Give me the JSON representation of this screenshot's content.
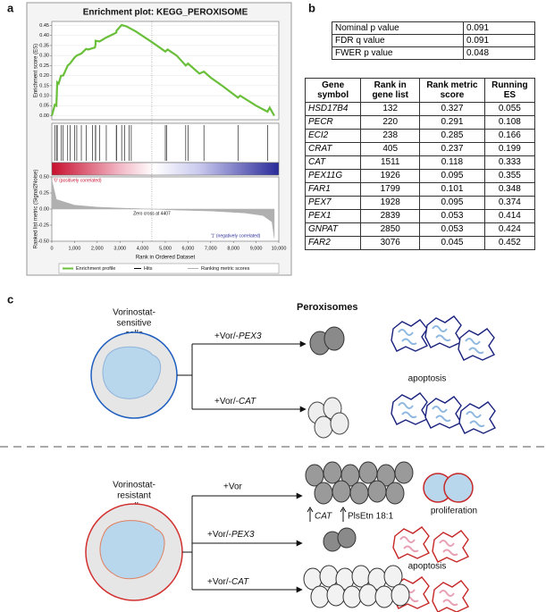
{
  "panel_labels": [
    "a",
    "b",
    "c"
  ],
  "chart_data": [
    {
      "type": "line",
      "title": "Enrichment plot: KEGG_PEROXISOME",
      "ylabel": "Enrichment score (ES)",
      "x": [
        0,
        50,
        132,
        200,
        220,
        238,
        300,
        405,
        500,
        700,
        800,
        1000,
        1100,
        1300,
        1511,
        1600,
        1900,
        1926,
        1928,
        2100,
        2400,
        2839,
        2850,
        3076,
        3300,
        3700,
        4100,
        4500,
        5000,
        5100,
        5500,
        5900,
        6000,
        6500,
        6700,
        7000,
        7500,
        8200,
        8300,
        9000,
        9500,
        9600,
        9800
      ],
      "series": [
        {
          "name": "Enrichment profile",
          "color": "#6abf3a",
          "values": [
            0,
            0.02,
            0.055,
            0.05,
            0.108,
            0.166,
            0.16,
            0.199,
            0.2,
            0.25,
            0.26,
            0.29,
            0.3,
            0.31,
            0.333,
            0.33,
            0.34,
            0.355,
            0.374,
            0.37,
            0.39,
            0.414,
            0.424,
            0.452,
            0.445,
            0.42,
            0.39,
            0.36,
            0.32,
            0.33,
            0.3,
            0.25,
            0.26,
            0.21,
            0.22,
            0.19,
            0.15,
            0.09,
            0.1,
            0.05,
            0.02,
            0.04,
            0.0
          ]
        }
      ],
      "xlim": [
        0,
        10000
      ],
      "ylim": [
        -0.02,
        0.47
      ],
      "yticks": [
        {
          "value": 0,
          "label": "0.00"
        },
        {
          "value": 0.05,
          "label": "0.05"
        },
        {
          "value": 0.1,
          "label": "0.10"
        },
        {
          "value": 0.15,
          "label": "0.15"
        },
        {
          "value": 0.2,
          "label": "0.20"
        },
        {
          "value": 0.25,
          "label": "0.25"
        },
        {
          "value": 0.3,
          "label": "0.30"
        },
        {
          "value": 0.35,
          "label": "0.35"
        },
        {
          "value": 0.4,
          "label": "0.40"
        },
        {
          "value": 0.45,
          "label": "0.45"
        }
      ],
      "grid": true
    },
    {
      "type": "rug",
      "name": "Hits",
      "color": "#000000",
      "x": [
        132,
        220,
        238,
        405,
        500,
        700,
        800,
        1000,
        1100,
        1300,
        1511,
        1799,
        1926,
        1928,
        2100,
        2400,
        2839,
        2850,
        3076,
        3200,
        3400,
        3500,
        5000,
        5050,
        5900,
        6000,
        6700,
        8200,
        9500
      ],
      "xlim": [
        0,
        10000
      ]
    },
    {
      "type": "area",
      "ylabel": "Ranked list metric (Signal2Noise)",
      "xlabel": "Rank in Ordered Dataset",
      "annotations": [
        "'0' (positively correlated)",
        "Zero cross at 4407",
        "'1' (negatively correlated)"
      ],
      "x": [
        0,
        200,
        1000,
        2000,
        3000,
        4407,
        5500,
        7000,
        8500,
        9300,
        9700,
        9800
      ],
      "series": [
        {
          "name": "Ranking metric scores",
          "color": "#b0b0b0",
          "values": [
            0.45,
            0.15,
            0.06,
            0.03,
            0.015,
            0,
            -0.015,
            -0.03,
            -0.06,
            -0.1,
            -0.2,
            -0.45
          ]
        }
      ],
      "xlim": [
        0,
        10000
      ],
      "ylim": [
        -0.5,
        0.5
      ],
      "yticks": [
        {
          "value": 0.5,
          "label": "0.50"
        },
        {
          "value": 0.25,
          "label": "0.25"
        },
        {
          "value": 0,
          "label": "0.00"
        },
        {
          "value": -0.25,
          "label": "-0.25"
        },
        {
          "value": -0.5,
          "label": "-0.50"
        }
      ],
      "xticks": [
        0,
        {
          "value": 1000,
          "label": "1,000"
        },
        {
          "value": 2000,
          "label": "2,000"
        },
        {
          "value": 3000,
          "label": "3,000"
        },
        {
          "value": 4000,
          "label": "4,000"
        },
        {
          "value": 5000,
          "label": "5,000"
        },
        {
          "value": 6000,
          "label": "6,000"
        },
        {
          "value": 7000,
          "label": "7,000"
        },
        {
          "value": 8000,
          "label": "8,000"
        },
        {
          "value": 9000,
          "label": "9,000"
        },
        {
          "value": 10000,
          "label": "10,000"
        }
      ]
    }
  ],
  "stats_table": {
    "rows": [
      [
        "Nominal p value",
        0.091
      ],
      [
        "FDR q value",
        0.091
      ],
      [
        "FWER p value",
        0.048
      ]
    ]
  },
  "gene_table": {
    "header": [
      "Gene symbol",
      "Rank in gene list",
      "Rank metric score",
      "Running ES"
    ],
    "rows": [
      [
        "HSD17B4",
        132,
        0.327,
        0.055
      ],
      [
        "PECR",
        220,
        0.291,
        0.108
      ],
      [
        "ECI2",
        238,
        0.285,
        0.166
      ],
      [
        "CRAT",
        405,
        0.237,
        0.199
      ],
      [
        "CAT",
        1511,
        0.118,
        0.333
      ],
      [
        "PEX11G",
        1926,
        0.095,
        0.355
      ],
      [
        "FAR1",
        1799,
        0.101,
        0.348
      ],
      [
        "PEX7",
        1928,
        0.095,
        0.374
      ],
      [
        "PEX1",
        2839,
        0.053,
        0.414
      ],
      [
        "GNPAT",
        2850,
        0.053,
        0.424
      ],
      [
        "FAR2",
        3076,
        0.045,
        0.452
      ]
    ]
  },
  "diagram": {
    "peroxisomes_title": "Peroxisomes",
    "sensitive": {
      "cell_label": [
        "Vorinostat-",
        "sensitive",
        "cells"
      ],
      "branches": [
        {
          "treatment": "+Vor/-",
          "gene": "PEX3"
        },
        {
          "treatment": "+Vor/-",
          "gene": "CAT"
        }
      ],
      "outcome": "apoptosis"
    },
    "resistant": {
      "cell_label": [
        "Vorinostat-",
        "resistant",
        "cells"
      ],
      "branches": [
        {
          "treatment": "+Vor"
        },
        {
          "treatment": "+Vor/-",
          "gene": "PEX3"
        },
        {
          "treatment": "+Vor/-",
          "gene": "CAT"
        }
      ],
      "markers": [
        "CAT",
        "PlsEtn 18:1"
      ],
      "outcomes": [
        "proliferation",
        "apoptosis"
      ]
    }
  }
}
